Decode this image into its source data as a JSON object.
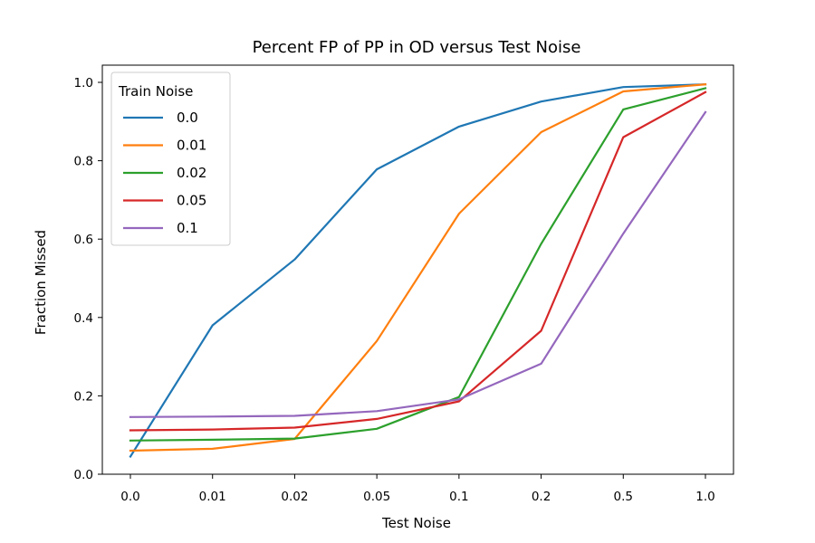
{
  "chart_data": {
    "type": "line",
    "title": "Percent FP of PP in OD versus Test Noise",
    "xlabel": "Test Noise",
    "ylabel": "Fraction Missed",
    "categories": [
      "0.0",
      "0.01",
      "0.02",
      "0.05",
      "0.1",
      "0.2",
      "0.5",
      "1.0"
    ],
    "ylim": [
      0.0,
      1.0
    ],
    "yticks": [
      "0.0",
      "0.2",
      "0.4",
      "0.6",
      "0.8",
      "1.0"
    ],
    "legend": {
      "title": "Train Noise",
      "placement": "upper-left"
    },
    "grid": false,
    "series": [
      {
        "name": "0.0",
        "color": "#1f77b4",
        "values": [
          0.045,
          0.38,
          0.548,
          0.778,
          0.887,
          0.951,
          0.988,
          0.995
        ]
      },
      {
        "name": "0.01",
        "color": "#ff7f0e",
        "values": [
          0.06,
          0.065,
          0.09,
          0.34,
          0.665,
          0.873,
          0.977,
          0.995
        ]
      },
      {
        "name": "0.02",
        "color": "#2ca02c",
        "values": [
          0.086,
          0.088,
          0.091,
          0.116,
          0.197,
          0.588,
          0.931,
          0.985
        ]
      },
      {
        "name": "0.05",
        "color": "#d62728",
        "values": [
          0.112,
          0.114,
          0.119,
          0.141,
          0.186,
          0.366,
          0.86,
          0.975
        ]
      },
      {
        "name": "0.1",
        "color": "#9467bd",
        "values": [
          0.146,
          0.147,
          0.149,
          0.161,
          0.191,
          0.282,
          0.614,
          0.924
        ]
      }
    ]
  }
}
